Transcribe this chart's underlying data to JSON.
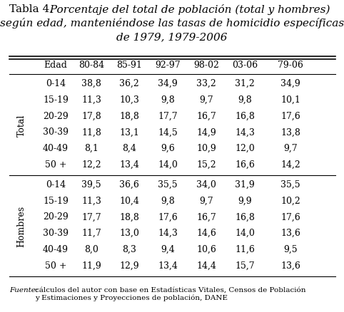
{
  "title_normal": "Tabla 4.",
  "title_italic": " Porcentaje del total de población (total y hombres)\nsegún edad, manteniéndose las tasas de homicidio específicas\nde 1979, 1979-2006",
  "col_headers": [
    "Edad",
    "80-84",
    "85-91",
    "92-97",
    "98-02",
    "03-06",
    "79-06"
  ],
  "row_group1_label": "Total",
  "row_group2_label": "Hombres",
  "group1_rows": [
    [
      "0-14",
      "38,8",
      "36,2",
      "34,9",
      "33,2",
      "31,2",
      "34,9"
    ],
    [
      "15-19",
      "11,3",
      "10,3",
      "9,8",
      "9,7",
      "9,8",
      "10,1"
    ],
    [
      "20-29",
      "17,8",
      "18,8",
      "17,7",
      "16,7",
      "16,8",
      "17,6"
    ],
    [
      "30-39",
      "11,8",
      "13,1",
      "14,5",
      "14,9",
      "14,3",
      "13,8"
    ],
    [
      "40-49",
      "8,1",
      "8,4",
      "9,6",
      "10,9",
      "12,0",
      "9,7"
    ],
    [
      "50 +",
      "12,2",
      "13,4",
      "14,0",
      "15,2",
      "16,6",
      "14,2"
    ]
  ],
  "group2_rows": [
    [
      "0-14",
      "39,5",
      "36,6",
      "35,5",
      "34,0",
      "31,9",
      "35,5"
    ],
    [
      "15-19",
      "11,3",
      "10,4",
      "9,8",
      "9,7",
      "9,9",
      "10,2"
    ],
    [
      "20-29",
      "17,7",
      "18,8",
      "17,6",
      "16,7",
      "16,8",
      "17,6"
    ],
    [
      "30-39",
      "11,7",
      "13,0",
      "14,3",
      "14,6",
      "14,0",
      "13,6"
    ],
    [
      "40-49",
      "8,0",
      "8,3",
      "9,4",
      "10,6",
      "11,6",
      "9,5"
    ],
    [
      "50 +",
      "11,9",
      "12,9",
      "13,4",
      "14,4",
      "15,7",
      "13,6"
    ]
  ],
  "footnote_italic": "Fuente:",
  "footnote_normal": "cálculos del autor con base en Estadísticas Vitales, Censos de Población\ny Estimaciones y Proyecciones de población, DANE",
  "bg_color": "#ffffff",
  "text_color": "#000000",
  "line_color": "#000000",
  "title_fontsize": 11,
  "header_fontsize": 9,
  "body_fontsize": 9,
  "footnote_fontsize": 7.5,
  "group_label_fontsize": 9
}
